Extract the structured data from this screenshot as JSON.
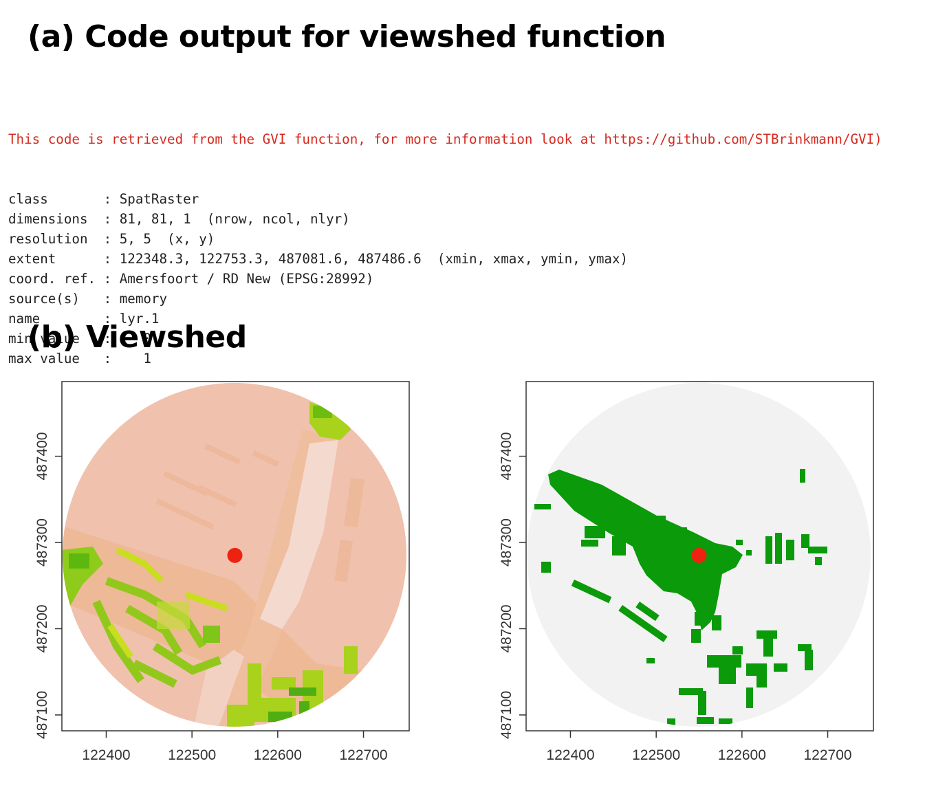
{
  "headings": {
    "a": "(a) Code output for viewshed function",
    "b": "(b) Viewshed"
  },
  "console": {
    "notice": "This code is retrieved from the GVI function, for more information look at https://github.com/STBrinkmann/GVI)",
    "lines": [
      {
        "key": "class",
        "value": "SpatRaster"
      },
      {
        "key": "dimensions",
        "value": "81, 81, 1  (nrow, ncol, nlyr)"
      },
      {
        "key": "resolution",
        "value": "5, 5  (x, y)"
      },
      {
        "key": "extent",
        "value": "122348.3, 122753.3, 487081.6, 487486.6  (xmin, xmax, ymin, ymax)"
      },
      {
        "key": "coord. ref.",
        "value": "Amersfoort / RD New (EPSG:28992)"
      },
      {
        "key": "source(s)",
        "value": "memory"
      },
      {
        "key": "name",
        "value": "lyr.1"
      },
      {
        "key": "min value",
        "value": "   0"
      },
      {
        "key": "max value",
        "value": "   1"
      }
    ]
  },
  "chart_data": [
    {
      "type": "heatmap",
      "xlim": [
        122348.3,
        122753.3
      ],
      "ylim": [
        487081.6,
        487486.6
      ],
      "x_ticks": [
        "122400",
        "122500",
        "122600",
        "122700"
      ],
      "y_ticks": [
        "487100",
        "487200",
        "487300",
        "487400"
      ],
      "colors": {
        "background": "#f0c1ad",
        "road": "#eeb996",
        "open": "#f4d9cf",
        "greenery": "#a8d21c",
        "greenery_dark": "#5cb80e",
        "observer": "#ee2211"
      },
      "observer": {
        "x": 122550,
        "y": 487285
      }
    },
    {
      "type": "heatmap",
      "xlim": [
        122348.3,
        122753.3
      ],
      "ylim": [
        487081.6,
        487486.6
      ],
      "x_ticks": [
        "122400",
        "122500",
        "122600",
        "122700"
      ],
      "y_ticks": [
        "487100",
        "487200",
        "487300",
        "487400"
      ],
      "colors": {
        "not_visible": "#f2f2f2",
        "visible": "#0a9a0a",
        "observer": "#ee2211"
      },
      "observer": {
        "x": 122550,
        "y": 487285
      }
    }
  ]
}
